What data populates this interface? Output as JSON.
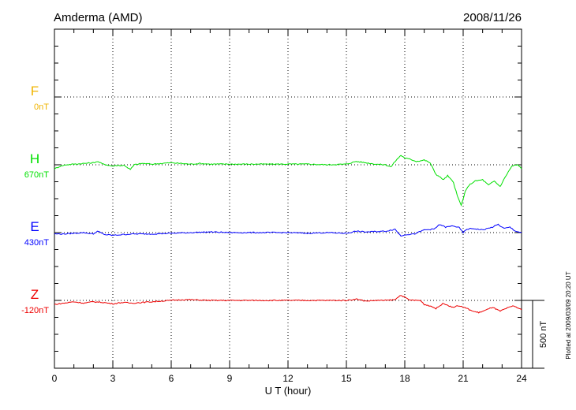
{
  "header": {
    "station": "Amderma (AMD)",
    "date": "2008/11/26"
  },
  "footer_note": "Plotted at 2009/03/09 20:20 UT",
  "scale_bar": {
    "label": "500 nT",
    "value_nT": 500
  },
  "chart_data": {
    "type": "line",
    "title": "Amderma (AMD)",
    "date": "2008/11/26",
    "xlabel": "U T (hour)",
    "xlim": [
      0,
      24
    ],
    "xticks": [
      "0",
      "3",
      "6",
      "9",
      "12",
      "15",
      "18",
      "21",
      "24"
    ],
    "grid": true,
    "series": [
      {
        "name": "F",
        "baseline_label": "0nT",
        "color": "#f0b400",
        "points": []
      },
      {
        "name": "H",
        "baseline_label": "670nT",
        "color": "#00e000",
        "points": [
          [
            0.0,
            -30
          ],
          [
            0.3,
            -10
          ],
          [
            0.6,
            0
          ],
          [
            1.0,
            5
          ],
          [
            1.5,
            10
          ],
          [
            2.0,
            15
          ],
          [
            2.2,
            25
          ],
          [
            2.5,
            5
          ],
          [
            3.0,
            -10
          ],
          [
            3.2,
            -5
          ],
          [
            3.6,
            -5
          ],
          [
            3.9,
            -35
          ],
          [
            4.1,
            0
          ],
          [
            4.5,
            10
          ],
          [
            5.0,
            5
          ],
          [
            5.5,
            10
          ],
          [
            6.0,
            15
          ],
          [
            6.5,
            10
          ],
          [
            7.0,
            5
          ],
          [
            7.5,
            10
          ],
          [
            8.0,
            5
          ],
          [
            9.0,
            5
          ],
          [
            10.0,
            5
          ],
          [
            11.0,
            5
          ],
          [
            12.0,
            5
          ],
          [
            13.0,
            5
          ],
          [
            14.0,
            0
          ],
          [
            15.0,
            5
          ],
          [
            15.5,
            25
          ],
          [
            16.0,
            15
          ],
          [
            16.5,
            5
          ],
          [
            17.0,
            0
          ],
          [
            17.3,
            -15
          ],
          [
            17.5,
            25
          ],
          [
            17.8,
            70
          ],
          [
            18.0,
            50
          ],
          [
            18.3,
            40
          ],
          [
            18.6,
            25
          ],
          [
            19.0,
            35
          ],
          [
            19.3,
            15
          ],
          [
            19.6,
            -70
          ],
          [
            20.0,
            -110
          ],
          [
            20.2,
            -80
          ],
          [
            20.5,
            -130
          ],
          [
            20.7,
            -230
          ],
          [
            20.9,
            -300
          ],
          [
            21.1,
            -200
          ],
          [
            21.3,
            -150
          ],
          [
            21.6,
            -120
          ],
          [
            22.0,
            -110
          ],
          [
            22.3,
            -150
          ],
          [
            22.6,
            -120
          ],
          [
            22.9,
            -160
          ],
          [
            23.2,
            -80
          ],
          [
            23.5,
            -10
          ],
          [
            23.8,
            0
          ],
          [
            24.0,
            -30
          ]
        ]
      },
      {
        "name": "E",
        "baseline_label": "430nT",
        "color": "#0000ff",
        "points": [
          [
            0.0,
            -10
          ],
          [
            0.5,
            -10
          ],
          [
            1.0,
            -5
          ],
          [
            1.5,
            0
          ],
          [
            2.0,
            -10
          ],
          [
            2.2,
            10
          ],
          [
            2.6,
            -15
          ],
          [
            3.0,
            -20
          ],
          [
            3.5,
            -15
          ],
          [
            4.0,
            -10
          ],
          [
            5.0,
            -10
          ],
          [
            6.0,
            -5
          ],
          [
            7.0,
            0
          ],
          [
            8.0,
            5
          ],
          [
            9.0,
            0
          ],
          [
            10.0,
            0
          ],
          [
            11.0,
            0
          ],
          [
            12.0,
            0
          ],
          [
            13.0,
            -5
          ],
          [
            14.0,
            0
          ],
          [
            15.0,
            -5
          ],
          [
            15.5,
            10
          ],
          [
            16.0,
            5
          ],
          [
            17.0,
            10
          ],
          [
            17.5,
            25
          ],
          [
            17.8,
            -25
          ],
          [
            18.0,
            -15
          ],
          [
            18.5,
            -10
          ],
          [
            19.0,
            20
          ],
          [
            19.5,
            25
          ],
          [
            19.8,
            60
          ],
          [
            20.1,
            40
          ],
          [
            20.5,
            50
          ],
          [
            20.8,
            35
          ],
          [
            21.0,
            0
          ],
          [
            21.2,
            25
          ],
          [
            21.5,
            30
          ],
          [
            22.0,
            20
          ],
          [
            22.5,
            40
          ],
          [
            22.8,
            60
          ],
          [
            23.1,
            30
          ],
          [
            23.4,
            40
          ],
          [
            23.7,
            10
          ],
          [
            24.0,
            0
          ]
        ]
      },
      {
        "name": "Z",
        "baseline_label": "-120nT",
        "color": "#ee0000",
        "points": [
          [
            0.0,
            -30
          ],
          [
            0.5,
            -20
          ],
          [
            1.0,
            -10
          ],
          [
            1.5,
            -20
          ],
          [
            2.0,
            -10
          ],
          [
            2.5,
            -15
          ],
          [
            3.0,
            -25
          ],
          [
            3.5,
            -15
          ],
          [
            4.0,
            -20
          ],
          [
            5.0,
            -10
          ],
          [
            6.0,
            0
          ],
          [
            6.5,
            5
          ],
          [
            7.0,
            5
          ],
          [
            8.0,
            0
          ],
          [
            9.0,
            0
          ],
          [
            10.0,
            0
          ],
          [
            11.0,
            0
          ],
          [
            12.0,
            0
          ],
          [
            13.0,
            0
          ],
          [
            14.0,
            0
          ],
          [
            15.0,
            0
          ],
          [
            15.5,
            10
          ],
          [
            16.0,
            -5
          ],
          [
            16.5,
            0
          ],
          [
            17.0,
            0
          ],
          [
            17.5,
            5
          ],
          [
            17.8,
            40
          ],
          [
            18.2,
            5
          ],
          [
            18.5,
            0
          ],
          [
            18.8,
            0
          ],
          [
            19.0,
            -30
          ],
          [
            19.3,
            -40
          ],
          [
            19.6,
            -60
          ],
          [
            20.0,
            -20
          ],
          [
            20.4,
            -50
          ],
          [
            20.8,
            -40
          ],
          [
            21.2,
            -60
          ],
          [
            21.5,
            -80
          ],
          [
            21.8,
            -90
          ],
          [
            22.2,
            -70
          ],
          [
            22.5,
            -50
          ],
          [
            22.9,
            -80
          ],
          [
            23.2,
            -60
          ],
          [
            23.6,
            -40
          ],
          [
            24.0,
            -70
          ]
        ]
      }
    ]
  }
}
